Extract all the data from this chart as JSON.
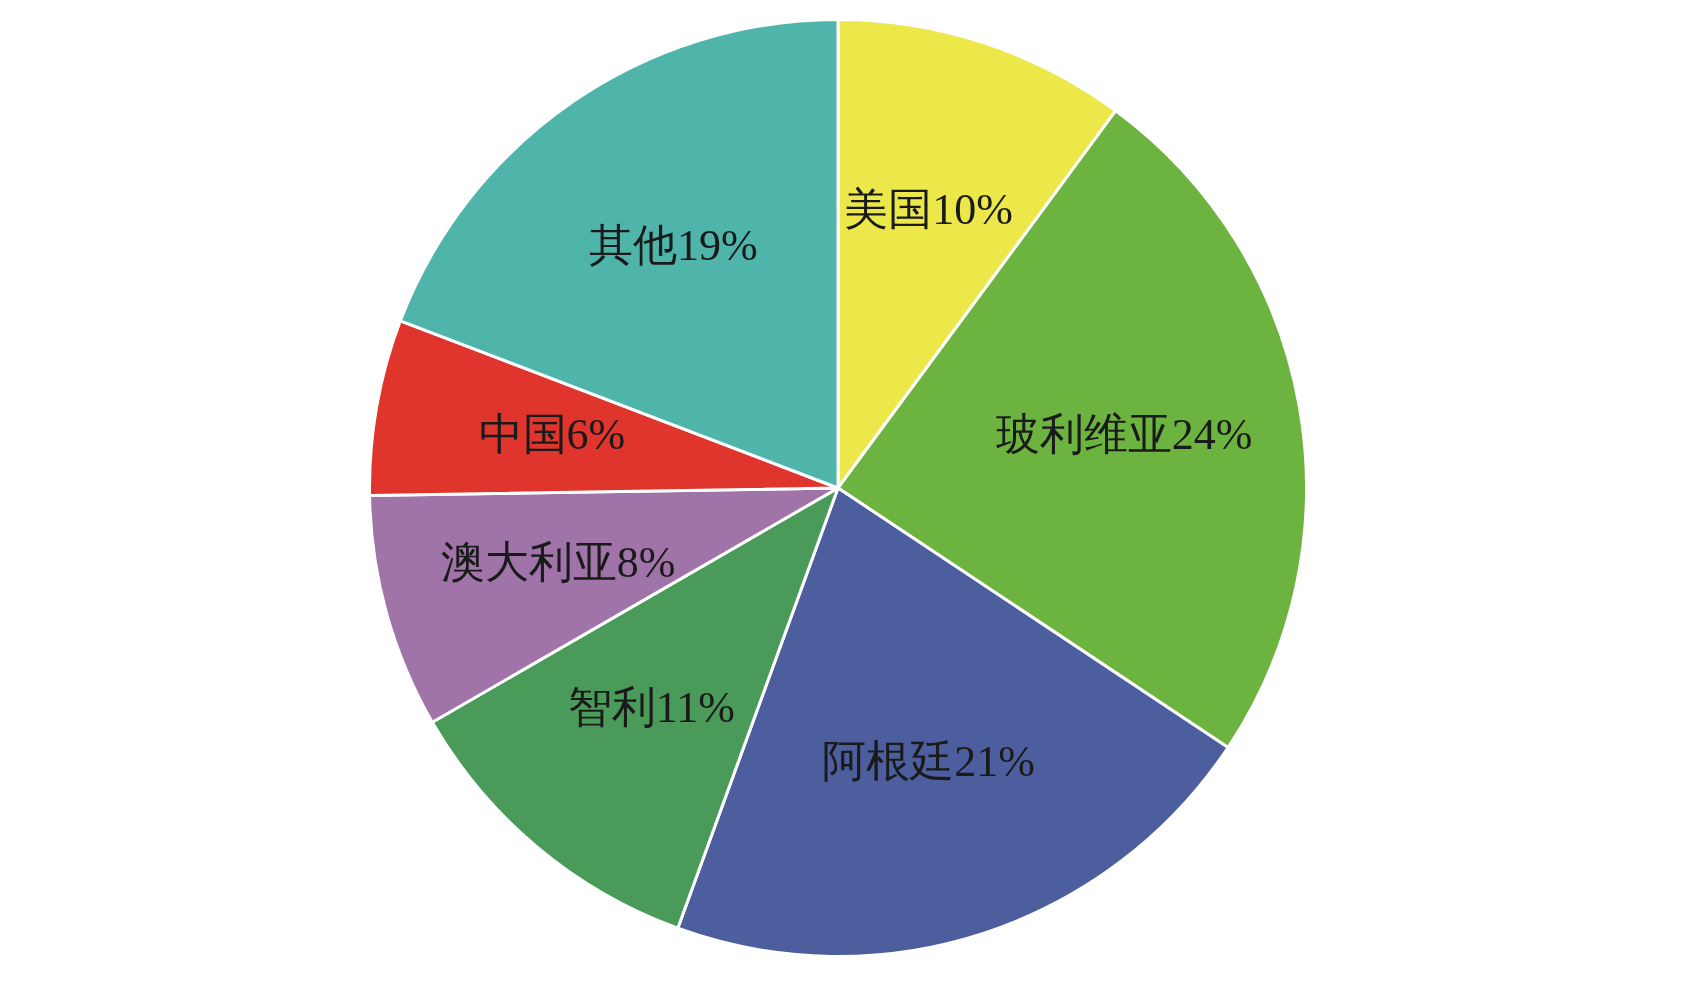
{
  "chart_data": {
    "type": "pie",
    "categories": [
      "美国",
      "玻利维亚",
      "阿根廷",
      "智利",
      "澳大利亚",
      "中国",
      "其他"
    ],
    "values": [
      10,
      24,
      21,
      11,
      8,
      6,
      19
    ],
    "value_labels": [
      "10%",
      "24%",
      "21%",
      "11%",
      "8%",
      "6%",
      "19%"
    ],
    "colors": [
      "#ede84a",
      "#6db33f",
      "#4c5e9e",
      "#4a9a5a",
      "#a074a8",
      "#e0352c",
      "#4fb5ab"
    ],
    "legend": false
  }
}
